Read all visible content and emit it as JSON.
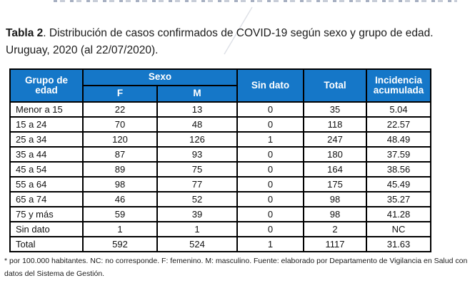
{
  "title": {
    "bold_part": "Tabla 2",
    "rest_part": ". Distribución de casos confirmados de COVID-19 según sexo y grupo de edad. Uruguay, 2020 (al 22/07/2020)."
  },
  "table": {
    "header": {
      "grupo": "Grupo de edad",
      "sexo": "Sexo",
      "f": "F",
      "m": "M",
      "sin_dato": "Sin dato",
      "total": "Total",
      "incidencia": "Incidencia acumulada"
    },
    "column_keys": [
      "grupo",
      "f",
      "m",
      "sin_dato",
      "total",
      "incidencia"
    ],
    "rows": [
      {
        "grupo": "Menor a 15",
        "f": "22",
        "m": "13",
        "sin_dato": "0",
        "total": "35",
        "incidencia": "5.04"
      },
      {
        "grupo": "15 a 24",
        "f": "70",
        "m": "48",
        "sin_dato": "0",
        "total": "118",
        "incidencia": "22.57"
      },
      {
        "grupo": "25 a 34",
        "f": "120",
        "m": "126",
        "sin_dato": "1",
        "total": "247",
        "incidencia": "48.49"
      },
      {
        "grupo": "35 a 44",
        "f": "87",
        "m": "93",
        "sin_dato": "0",
        "total": "180",
        "incidencia": "37.59"
      },
      {
        "grupo": "45 a 54",
        "f": "89",
        "m": "75",
        "sin_dato": "0",
        "total": "164",
        "incidencia": "38.56"
      },
      {
        "grupo": "55 a 64",
        "f": "98",
        "m": "77",
        "sin_dato": "0",
        "total": "175",
        "incidencia": "45.49"
      },
      {
        "grupo": "65 a 74",
        "f": "46",
        "m": "52",
        "sin_dato": "0",
        "total": "98",
        "incidencia": "35.27"
      },
      {
        "grupo": "75 y más",
        "f": "59",
        "m": "39",
        "sin_dato": "0",
        "total": "98",
        "incidencia": "41.28"
      },
      {
        "grupo": "Sin dato",
        "f": "1",
        "m": "1",
        "sin_dato": "0",
        "total": "2",
        "incidencia": "NC"
      },
      {
        "grupo": "Total",
        "f": "592",
        "m": "524",
        "sin_dato": "1",
        "total": "1117",
        "incidencia": "31.63"
      }
    ]
  },
  "footnote": "* por 100.000 habitantes. NC: no corresponde. F: femenino. M: masculino. Fuente: elaborado por Departamento de Vigilancia en Salud con datos del Sistema de Gestión.",
  "colors": {
    "header_bg": "#1577C8",
    "header_text": "#FFFFFF",
    "border": "#000000",
    "body_text": "#1B1B1B"
  }
}
